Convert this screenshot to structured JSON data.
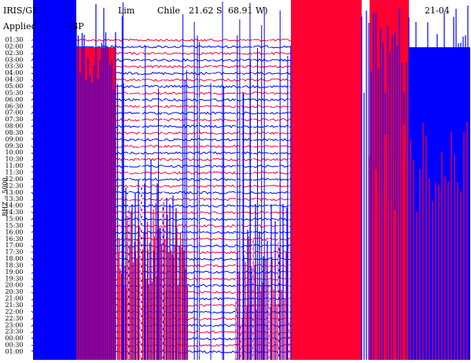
{
  "header": {
    "station": "IRIS/GE",
    "place_a": "Lim",
    "place_b": "Chile",
    "lat": "21.62 S",
    "lon": "68.91 W)",
    "date": "21-04",
    "filter": "Applied",
    "filter_b": "-SP"
  },
  "axis_label": "BHZ -- 5000",
  "time_labels": [
    "01:30",
    "02:00",
    "02:30",
    "03:00",
    "03:30",
    "04:00",
    "04:30",
    "05:00",
    "05:30",
    "06:00",
    "06:30",
    "07:00",
    "07:30",
    "08:00",
    "08:30",
    "09:00",
    "09:30",
    "10:00",
    "10:30",
    "11:00",
    "11:30",
    "12:00",
    "12:30",
    "13:00",
    "13:30",
    "14:00",
    "14:30",
    "15:00",
    "15:30",
    "16:00",
    "16:30",
    "17:00",
    "17:30",
    "18:00",
    "18:30",
    "19:00",
    "19:30",
    "20:00",
    "20:30",
    "21:00",
    "21:30",
    "22:00",
    "22:30",
    "23:00",
    "23:30",
    "00:00",
    "00:30",
    "01:00"
  ]
}
